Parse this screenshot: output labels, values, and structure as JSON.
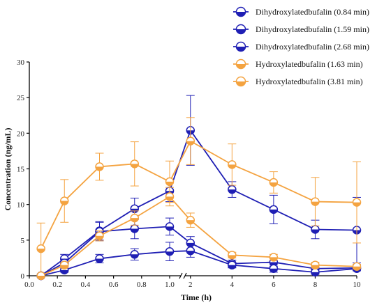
{
  "chart_data": {
    "type": "line",
    "title": "",
    "xlabel": "Time (h)",
    "ylabel": "Concentration (ng/mL)",
    "x": [
      0.083,
      0.25,
      0.5,
      0.75,
      1.0,
      2,
      4,
      6,
      8,
      10
    ],
    "x_axis_break": 1.0,
    "x_ticks": [
      {
        "v": 0.0,
        "label": "0.0"
      },
      {
        "v": 0.2,
        "label": "0.2"
      },
      {
        "v": 0.4,
        "label": "0.4"
      },
      {
        "v": 0.6,
        "label": "0.6"
      },
      {
        "v": 0.8,
        "label": "0.8"
      },
      {
        "v": 1.0,
        "label": "1.0"
      },
      {
        "v": 2,
        "label": "2"
      },
      {
        "v": 4,
        "label": "4"
      },
      {
        "v": 6,
        "label": "6"
      },
      {
        "v": 8,
        "label": "8"
      },
      {
        "v": 10,
        "label": "10"
      }
    ],
    "ylim": [
      0,
      30
    ],
    "y_ticks": [
      {
        "v": 0,
        "label": "0"
      },
      {
        "v": 5,
        "label": "5"
      },
      {
        "v": 10,
        "label": "10"
      },
      {
        "v": 15,
        "label": "15"
      },
      {
        "v": 20,
        "label": "20"
      },
      {
        "v": 25,
        "label": "25"
      },
      {
        "v": 30,
        "label": "30"
      }
    ],
    "legend_position": "top-right",
    "series": [
      {
        "name": "Dihydroxylatedbufalin (0.84 min)",
        "color": "#1f1fb4",
        "values": [
          0.0,
          2.4,
          6.3,
          9.4,
          11.9,
          20.4,
          12.1,
          9.3,
          6.5,
          6.4
        ],
        "errors": [
          0.2,
          0.6,
          1.3,
          1.5,
          1.5,
          4.9,
          1.1,
          2.0,
          1.3,
          4.6
        ]
      },
      {
        "name": "Dihydroxylatedbufalin (1.59 min)",
        "color": "#1f1fb4",
        "values": [
          0.0,
          1.8,
          6.2,
          6.6,
          6.9,
          4.6,
          1.7,
          1.9,
          1.0,
          1.1
        ],
        "errors": [
          0.2,
          0.5,
          1.3,
          1.4,
          1.2,
          0.9,
          0.5,
          0.6,
          0.4,
          0.4
        ]
      },
      {
        "name": "Dihydroxylatedbufalin (2.68 min)",
        "color": "#1f1fb4",
        "values": [
          0.0,
          0.8,
          2.4,
          3.0,
          3.4,
          3.5,
          1.5,
          1.0,
          0.5,
          1.0
        ],
        "errors": [
          0.1,
          0.3,
          0.6,
          0.8,
          1.3,
          0.9,
          0.4,
          0.5,
          0.3,
          0.3
        ]
      },
      {
        "name": "Hydroxylatedbufalin (1.63 min)",
        "color": "#f4a340",
        "values": [
          3.8,
          10.5,
          15.3,
          15.7,
          13.2,
          18.9,
          15.6,
          13.1,
          10.4,
          10.3
        ],
        "errors": [
          3.6,
          3.0,
          1.9,
          3.1,
          2.9,
          3.3,
          2.9,
          1.5,
          3.4,
          5.7
        ]
      },
      {
        "name": "Hydroxylatedbufalin (3.81 min)",
        "color": "#f4a340",
        "values": [
          0.0,
          1.5,
          5.6,
          8.1,
          11.1,
          7.8,
          2.9,
          2.6,
          1.5,
          1.3
        ],
        "errors": [
          0.1,
          0.4,
          0.7,
          1.0,
          1.3,
          1.0,
          0.4,
          0.4,
          0.4,
          0.3
        ]
      }
    ]
  }
}
